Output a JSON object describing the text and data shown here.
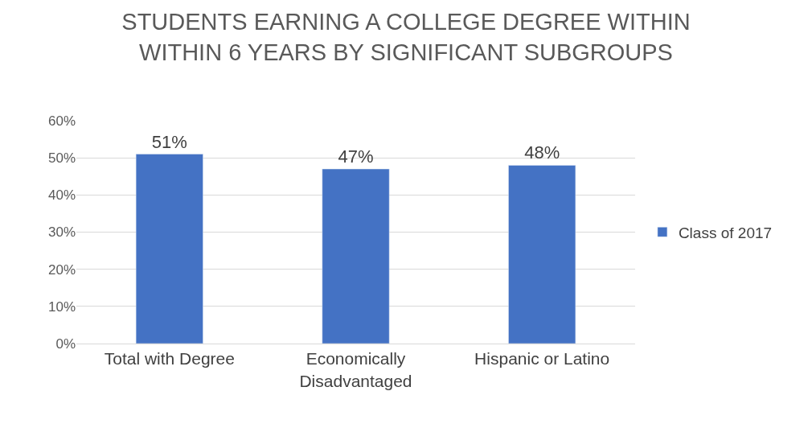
{
  "chart_data": {
    "type": "bar",
    "title": "STUDENTS EARNING A COLLEGE DEGREE WITHIN WITHIN 6 YEARS BY SIGNIFICANT SUBGROUPS",
    "categories": [
      "Total with Degree",
      "Economically Disadvantaged",
      "Hispanic or Latino"
    ],
    "series": [
      {
        "name": "Class of 2017",
        "color": "#4472c4",
        "values": [
          51,
          47,
          48
        ],
        "value_labels": [
          "51%",
          "47%",
          "48%"
        ]
      }
    ],
    "ylim": [
      0,
      60
    ],
    "yticks": [
      {
        "value": 0,
        "label": "0%"
      },
      {
        "value": 10,
        "label": "10%"
      },
      {
        "value": 20,
        "label": "20%"
      },
      {
        "value": 30,
        "label": "30%"
      },
      {
        "value": 40,
        "label": "40%"
      },
      {
        "value": 50,
        "label": "50%"
      },
      {
        "value": 60,
        "label": "60%"
      }
    ],
    "grid": "y",
    "legend": "right"
  }
}
